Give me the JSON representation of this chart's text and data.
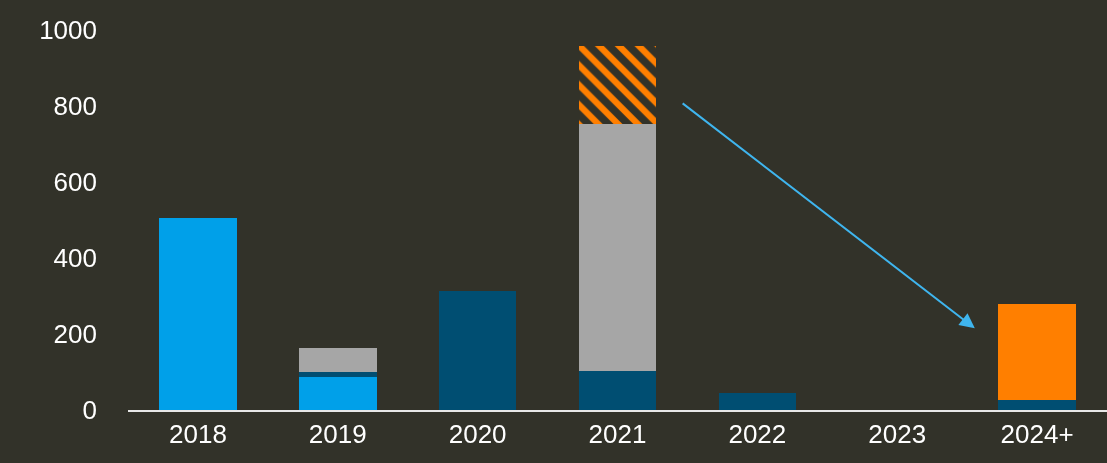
{
  "chart_data": {
    "type": "bar",
    "stacked": true,
    "categories": [
      "2018",
      "2019",
      "2020",
      "2021",
      "2022",
      "2023",
      "2024+"
    ],
    "series": [
      {
        "color": "#00a0e9",
        "values": [
          505,
          87,
          null,
          null,
          null,
          null,
          null
        ]
      },
      {
        "color": "#004e72",
        "values": [
          null,
          14,
          313,
          103,
          44,
          null,
          26
        ]
      },
      {
        "color": "#a6a6a6",
        "values": [
          null,
          61,
          null,
          650,
          null,
          null,
          null
        ]
      },
      {
        "color": "#ff7f00",
        "values": [
          null,
          null,
          null,
          205,
          null,
          null,
          null
        ]
      },
      {
        "color": "#ff7f00",
        "values": [
          null,
          null,
          null,
          null,
          null,
          null,
          253
        ]
      }
    ],
    "ylim": [
      0,
      1000
    ],
    "yticks": [
      0,
      200,
      400,
      600,
      800,
      1000
    ],
    "grid": false,
    "legend": false
  }
}
